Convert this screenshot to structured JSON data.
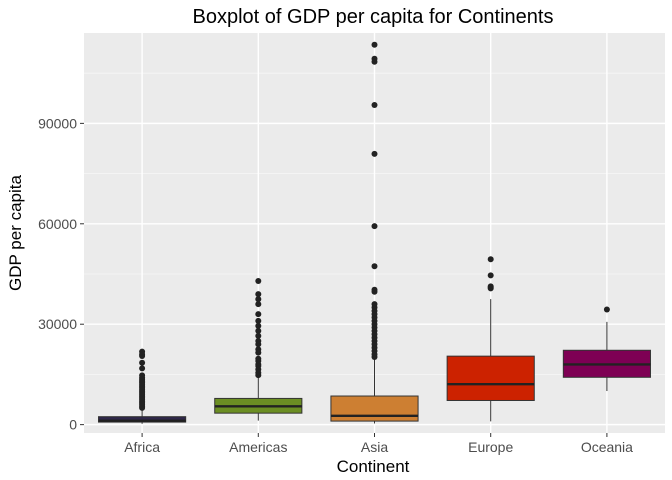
{
  "chart_data": {
    "type": "boxplot",
    "title": "Boxplot of GDP per capita for Continents",
    "xlabel": "Continent",
    "ylabel": "GDP per capita",
    "ylim": [
      -2500,
      117000
    ],
    "yticks": [
      0,
      30000,
      60000,
      90000
    ],
    "ytick_labels": [
      "0",
      "30000",
      "60000",
      "90000"
    ],
    "grid": true,
    "categories": [
      "Africa",
      "Americas",
      "Asia",
      "Europe",
      "Oceania"
    ],
    "series": [
      {
        "category": "Africa",
        "color": "#2e2649",
        "whisker_low": 241,
        "q1": 761,
        "median": 1192,
        "q3": 2377,
        "whisker_high": 4700,
        "outliers": [
          5000,
          5500,
          6000,
          6500,
          7000,
          7500,
          8000,
          8500,
          9000,
          9500,
          10000,
          10500,
          11000,
          11500,
          12000,
          12500,
          13000,
          13500,
          14000,
          14700,
          16800,
          18500,
          20500,
          21000,
          21800
        ]
      },
      {
        "category": "Americas",
        "color": "#6b8e23",
        "whisker_low": 1202,
        "q1": 3428,
        "median": 5466,
        "q3": 7830,
        "whisker_high": 14000,
        "outliers": [
          14800,
          15500,
          16500,
          17500,
          18000,
          19000,
          19700,
          21500,
          22500,
          24000,
          25000,
          26500,
          28000,
          29500,
          31000,
          33000,
          36000,
          37500,
          39000,
          42900
        ]
      },
      {
        "category": "Asia",
        "color": "#cd7f32",
        "whisker_low": 331,
        "q1": 1057,
        "median": 2647,
        "q3": 8549,
        "whisker_high": 19800,
        "outliers": [
          20200,
          21000,
          22000,
          23000,
          24000,
          25000,
          26000,
          27000,
          28000,
          29000,
          30000,
          31000,
          32000,
          33000,
          34000,
          35000,
          36000,
          39700,
          40300,
          47300,
          59300,
          80900,
          95500,
          108400,
          109300,
          113500
        ]
      },
      {
        "category": "Europe",
        "color": "#cc2200",
        "whisker_low": 974,
        "q1": 7213,
        "median": 12082,
        "q3": 20461,
        "whisker_high": 37500,
        "outliers": [
          40700,
          41000,
          41300,
          44600,
          49400
        ]
      },
      {
        "category": "Oceania",
        "color": "#7e0054",
        "whisker_low": 10040,
        "q1": 14142,
        "median": 17983,
        "q3": 22214,
        "whisker_high": 30700,
        "outliers": [
          34400
        ]
      }
    ]
  }
}
